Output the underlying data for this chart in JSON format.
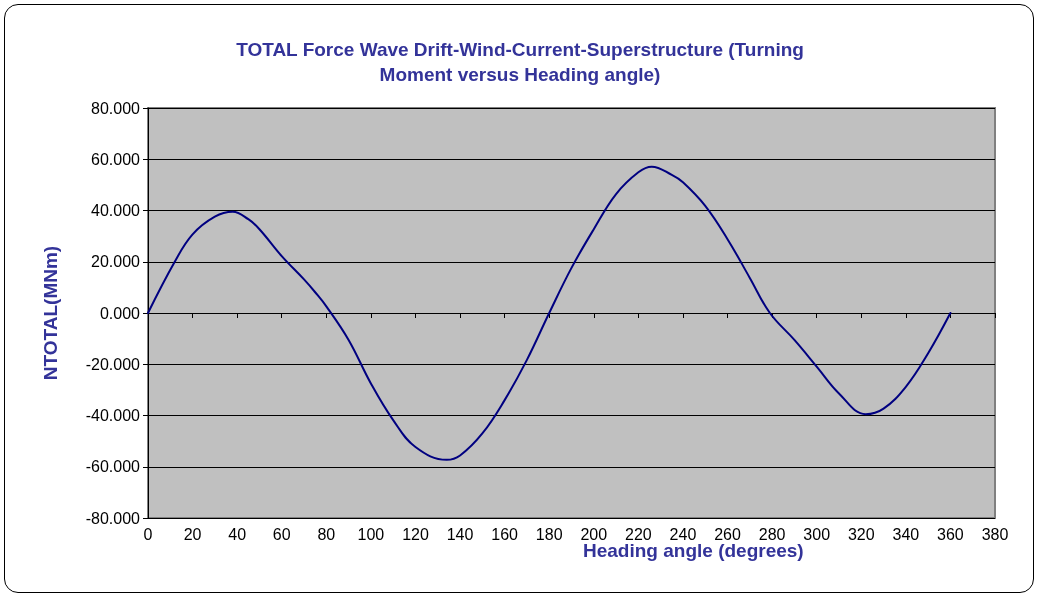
{
  "chart_data": {
    "type": "line",
    "title": "TOTAL Force Wave Drift-Wind-Current-Superstructure (Turning\nMoment versus Heading angle)",
    "xlabel": "Heading angle (degrees)",
    "ylabel": "NTOTAL(MNm)",
    "x": [
      0,
      12,
      20,
      30,
      38,
      45,
      50,
      60,
      70,
      75,
      80,
      90,
      100,
      110,
      120,
      134,
      140,
      150,
      160,
      170,
      180,
      190,
      200,
      210,
      220,
      226,
      235,
      240,
      250,
      260,
      270,
      279,
      290,
      300,
      310,
      322,
      330,
      340,
      350,
      360
    ],
    "series": [
      {
        "color": "#000080",
        "values": [
          0,
          20,
          30.7,
          37.6,
          39.5,
          36.6,
          32.7,
          22.2,
          13.1,
          8.1,
          2.6,
          -10.5,
          -27.5,
          -41.8,
          -52.3,
          -57.3,
          -55.6,
          -47,
          -34,
          -18.3,
          0,
          17.6,
          32.7,
          46.4,
          54.9,
          57.1,
          53.9,
          51,
          41.8,
          28.8,
          13.7,
          0,
          -10.5,
          -20.9,
          -31.4,
          -39.5,
          -37.3,
          -28.8,
          -15.7,
          0
        ]
      }
    ],
    "xlim": [
      0,
      380
    ],
    "xticks": [
      0,
      20,
      40,
      60,
      80,
      100,
      120,
      140,
      160,
      180,
      200,
      220,
      240,
      260,
      280,
      300,
      320,
      340,
      360,
      380
    ],
    "ylim": [
      -80,
      80
    ],
    "yticks": [
      {
        "value": -80,
        "label": "-80.000"
      },
      {
        "value": -60,
        "label": "-60.000"
      },
      {
        "value": -40,
        "label": "-40.000"
      },
      {
        "value": -20,
        "label": "-20.000"
      },
      {
        "value": 0,
        "label": "0.000"
      },
      {
        "value": 20,
        "label": "20.000"
      },
      {
        "value": 40,
        "label": "40.000"
      },
      {
        "value": 60,
        "label": "60.000"
      },
      {
        "value": 80,
        "label": "80.000"
      }
    ],
    "grid": "y",
    "marker": "none",
    "line_style": "solid"
  }
}
